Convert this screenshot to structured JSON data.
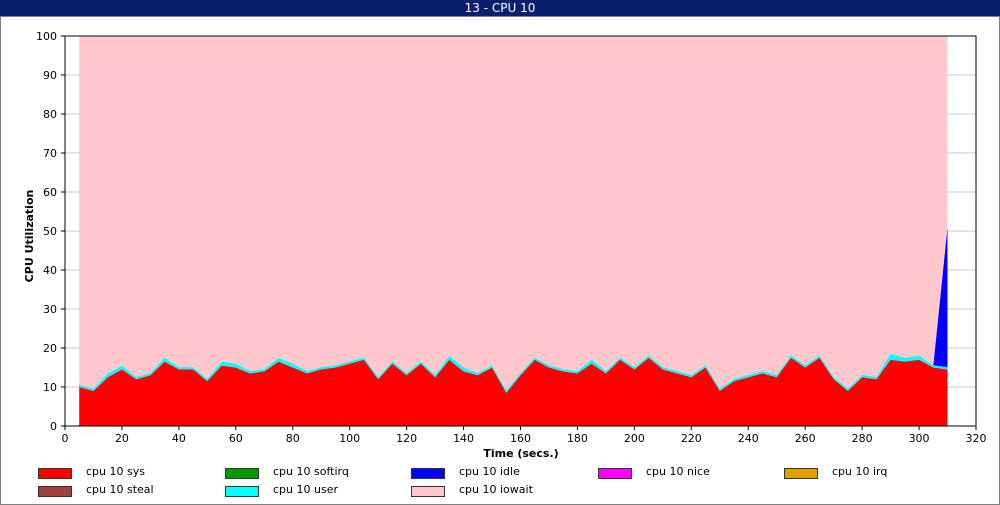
{
  "window": {
    "title": "13 - CPU 10"
  },
  "chart_data": {
    "type": "area",
    "title": "13 - CPU 10",
    "xlabel": "Time (secs.)",
    "ylabel": "CPU Utilization",
    "xlim": [
      0,
      320
    ],
    "ylim": [
      0,
      100
    ],
    "xticks": [
      0,
      20,
      40,
      60,
      80,
      100,
      120,
      140,
      160,
      180,
      200,
      220,
      240,
      260,
      280,
      300,
      320
    ],
    "yticks": [
      0,
      10,
      20,
      30,
      40,
      50,
      60,
      70,
      80,
      90,
      100
    ],
    "grid": true,
    "stacked": true,
    "x": [
      5,
      10,
      15,
      20,
      25,
      30,
      35,
      40,
      45,
      50,
      55,
      60,
      65,
      70,
      75,
      80,
      85,
      90,
      95,
      100,
      105,
      110,
      115,
      120,
      125,
      130,
      135,
      140,
      145,
      150,
      155,
      160,
      165,
      170,
      175,
      180,
      185,
      190,
      195,
      200,
      205,
      210,
      215,
      220,
      225,
      230,
      235,
      240,
      245,
      250,
      255,
      260,
      265,
      270,
      275,
      280,
      285,
      290,
      295,
      300,
      305,
      310
    ],
    "series": [
      {
        "name": "cpu 10 sys",
        "color": "#ff0000",
        "values": [
          10,
          9,
          12.5,
          14.5,
          12,
          13,
          16.5,
          14.5,
          14.5,
          11.5,
          15.5,
          15,
          13.5,
          14,
          16.5,
          15,
          13.5,
          14.5,
          15,
          16,
          17,
          12,
          16,
          13,
          16,
          12.5,
          17,
          14,
          13,
          15,
          8.5,
          13,
          17,
          15,
          14,
          13.5,
          16,
          13.5,
          17,
          14.5,
          17.5,
          14.5,
          13.5,
          12.5,
          15,
          9,
          11.5,
          12.5,
          13.5,
          12.5,
          17.5,
          15,
          17.5,
          12,
          9,
          12.5,
          12,
          17,
          16.5,
          17,
          15,
          14.5
        ]
      },
      {
        "name": "cpu 10 softirq",
        "color": "#009900",
        "values": [
          0,
          0,
          0,
          0,
          0,
          0,
          0,
          0,
          0,
          0,
          0,
          0,
          0,
          0,
          0,
          0,
          0,
          0,
          0,
          0,
          0,
          0,
          0,
          0,
          0,
          0,
          0,
          0,
          0,
          0,
          0,
          0,
          0,
          0,
          0,
          0,
          0,
          0,
          0,
          0,
          0,
          0,
          0,
          0,
          0,
          0,
          0,
          0,
          0,
          0,
          0,
          0,
          0,
          0,
          0,
          0,
          0,
          0,
          0,
          0,
          0,
          0
        ]
      },
      {
        "name": "cpu 10 irq",
        "color": "#e0a000",
        "values": [
          0,
          0,
          0,
          0,
          0,
          0,
          0,
          0,
          0,
          0,
          0,
          0,
          0,
          0,
          0,
          0,
          0,
          0,
          0,
          0,
          0,
          0,
          0,
          0,
          0,
          0,
          0,
          0,
          0,
          0,
          0,
          0,
          0,
          0,
          0,
          0,
          0,
          0,
          0,
          0,
          0,
          0,
          0,
          0,
          0,
          0,
          0,
          0,
          0,
          0,
          0,
          0,
          0,
          0,
          0,
          0,
          0,
          0,
          0,
          0,
          0,
          0
        ]
      },
      {
        "name": "cpu 10 steal",
        "color": "#a04040",
        "values": [
          0,
          0,
          0,
          0,
          0,
          0,
          0,
          0,
          0,
          0,
          0,
          0,
          0,
          0,
          0,
          0,
          0,
          0,
          0,
          0,
          0,
          0,
          0,
          0,
          0,
          0,
          0,
          0,
          0,
          0,
          0,
          0,
          0,
          0,
          0,
          0,
          0,
          0,
          0,
          0,
          0,
          0,
          0,
          0,
          0,
          0,
          0,
          0,
          0,
          0,
          0,
          0,
          0,
          0,
          0,
          0,
          0,
          0,
          0,
          0,
          0,
          0
        ]
      },
      {
        "name": "cpu 10 user",
        "color": "#00ffff",
        "values": [
          0.6,
          0.6,
          1,
          1,
          0.6,
          0.6,
          1,
          0.6,
          0.6,
          0.6,
          1,
          1,
          0.6,
          0.6,
          1,
          1,
          0.6,
          0.6,
          0.6,
          0.6,
          0.6,
          0.6,
          0.6,
          0.6,
          0.6,
          0.6,
          1,
          1,
          0.6,
          0.6,
          0.6,
          0.6,
          0.6,
          0.6,
          0.6,
          0.6,
          1,
          0.6,
          0.6,
          0.6,
          0.6,
          0.6,
          0.6,
          0.6,
          0.6,
          0.6,
          0.6,
          0.6,
          0.6,
          0.6,
          0.6,
          0.6,
          0.6,
          0.6,
          0.6,
          0.6,
          0.6,
          1.5,
          1,
          1,
          0.6,
          0.6
        ]
      },
      {
        "name": "cpu 10 nice",
        "color": "#ff00ff",
        "values": [
          0,
          0,
          0,
          0,
          0,
          0,
          0,
          0,
          0,
          0,
          0,
          0,
          0,
          0,
          0,
          0,
          0,
          0,
          0,
          0,
          0,
          0,
          0,
          0,
          0,
          0,
          0,
          0,
          0,
          0,
          0,
          0,
          0,
          0,
          0,
          0,
          0,
          0,
          0,
          0,
          0,
          0,
          0,
          0,
          0,
          0,
          0,
          0,
          0,
          0,
          0,
          0,
          0,
          0,
          0,
          0,
          0,
          0,
          0,
          0,
          0,
          0
        ]
      },
      {
        "name": "cpu 10 idle",
        "color": "#0000ff",
        "values": [
          0,
          0,
          0,
          0,
          0,
          0,
          0,
          0,
          0,
          0,
          0,
          0,
          0,
          0,
          0,
          0,
          0,
          0,
          0,
          0,
          0,
          0,
          0,
          0,
          0,
          0,
          0,
          0,
          0,
          0,
          0,
          0,
          0,
          0,
          0,
          0,
          0,
          0,
          0,
          0,
          0,
          0,
          0,
          0,
          0,
          0,
          0,
          0,
          0,
          0,
          0,
          0,
          0,
          0,
          0,
          0,
          0,
          0,
          0,
          0,
          0,
          36
        ]
      },
      {
        "name": "cpu 10 iowait",
        "color": "#ffc8cc",
        "values": [
          89.4,
          90.4,
          86.5,
          84.5,
          87.4,
          86.4,
          82.5,
          84.9,
          84.9,
          87.9,
          83.5,
          84,
          85.9,
          85.4,
          82.5,
          84,
          85.9,
          84.9,
          84.4,
          83.4,
          82.4,
          87.4,
          83.4,
          86.4,
          83.4,
          86.9,
          82,
          85,
          86.4,
          84.4,
          90.9,
          86.4,
          82.4,
          84.4,
          85.4,
          85.9,
          83,
          85.9,
          82.4,
          84.9,
          81.9,
          84.9,
          85.9,
          86.9,
          84.4,
          90.4,
          87.9,
          86.9,
          85.9,
          86.9,
          81.9,
          84.4,
          81.9,
          87.4,
          90.4,
          86.9,
          87.4,
          81.5,
          82.5,
          82,
          84.4,
          48.9
        ]
      }
    ],
    "legend": {
      "placement": "bottom",
      "entries": [
        {
          "label": "cpu 10 sys",
          "color": "#ff0000"
        },
        {
          "label": "cpu 10 softirq",
          "color": "#009900"
        },
        {
          "label": "cpu 10 idle",
          "color": "#0000ff"
        },
        {
          "label": "cpu 10 nice",
          "color": "#ff00ff"
        },
        {
          "label": "cpu 10 irq",
          "color": "#e0a000"
        },
        {
          "label": "cpu 10 steal",
          "color": "#a04040"
        },
        {
          "label": "cpu 10 user",
          "color": "#00ffff"
        },
        {
          "label": "cpu 10 iowait",
          "color": "#ffc8cc"
        }
      ]
    }
  }
}
